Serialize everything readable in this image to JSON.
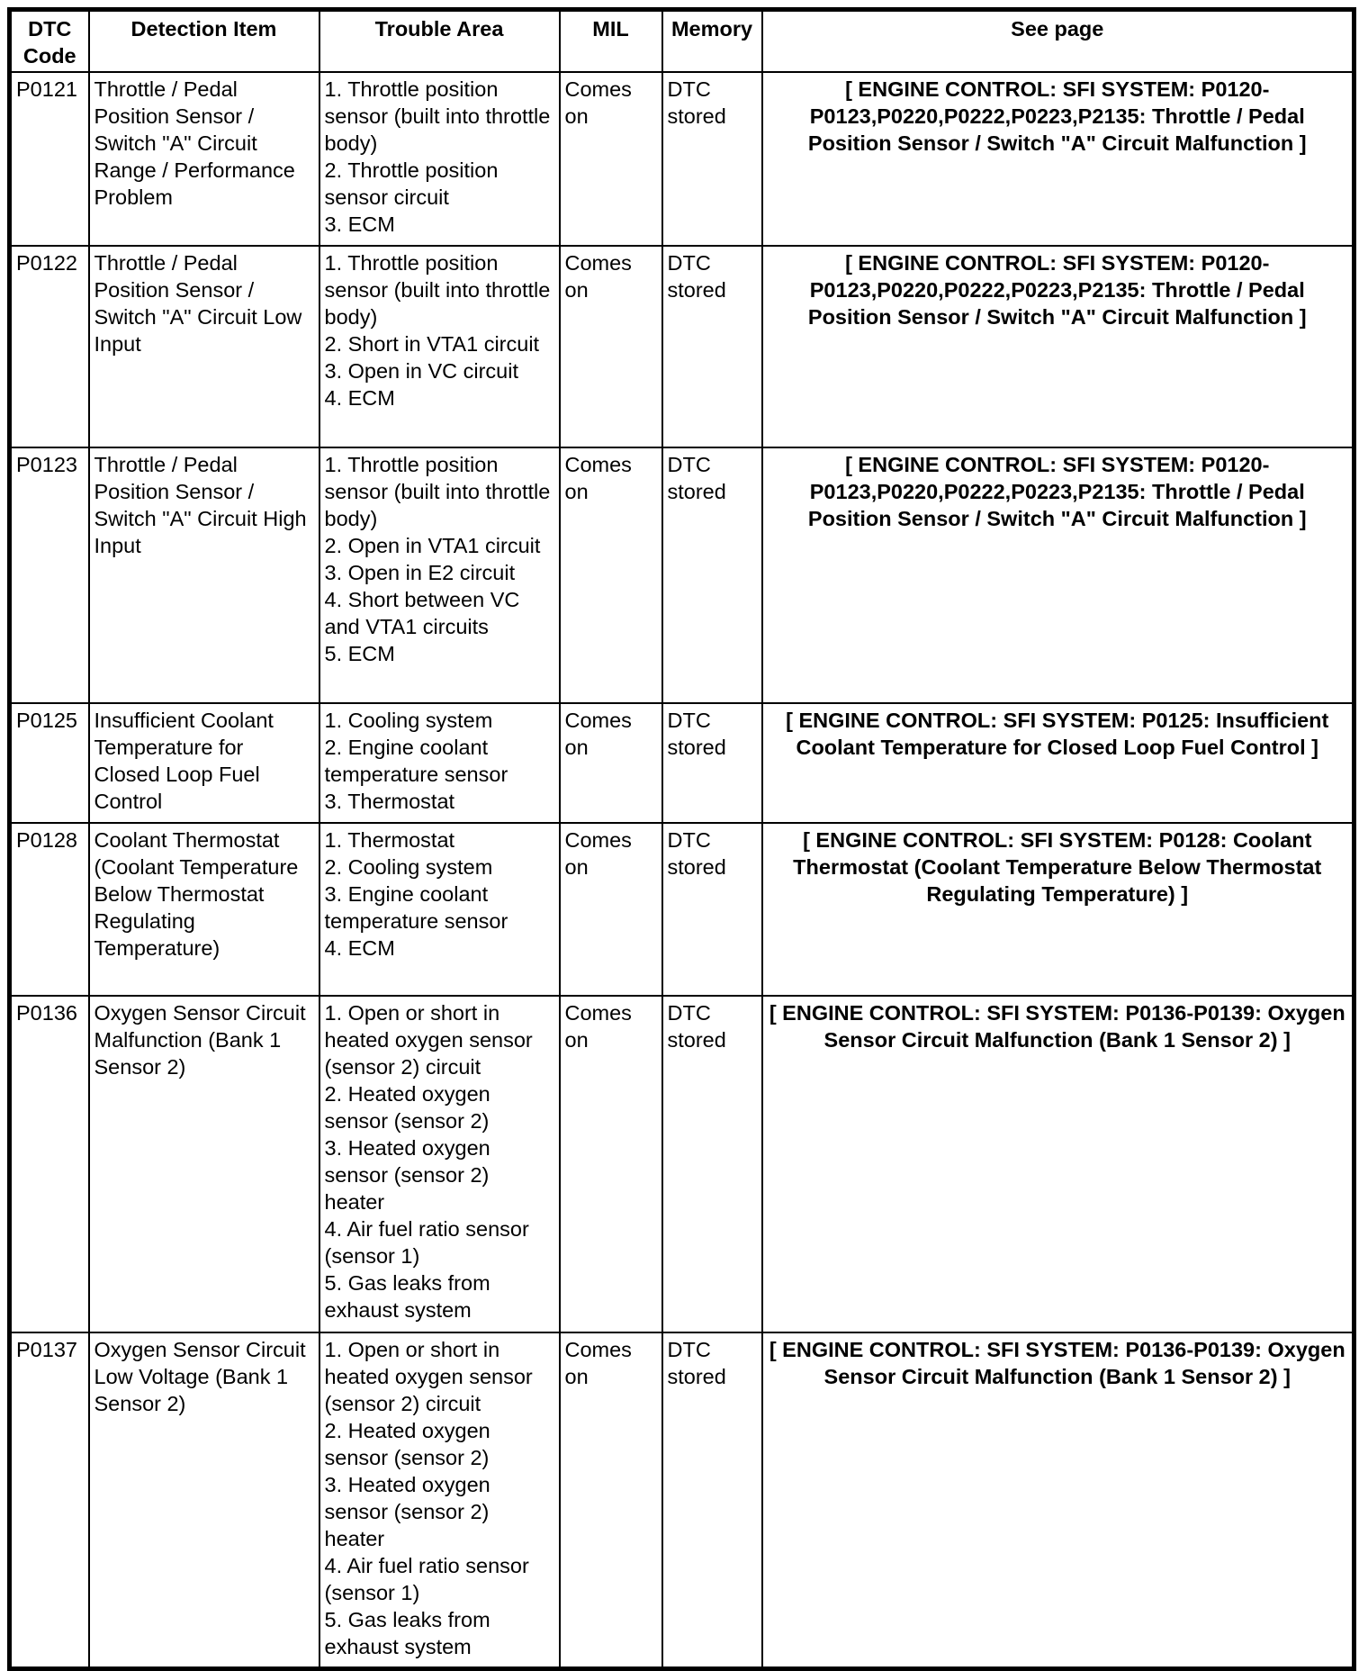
{
  "headers": {
    "code": "DTC Code",
    "detection": "Detection Item",
    "trouble": "Trouble Area",
    "mil": "MIL",
    "memory": "Memory",
    "see": "See page"
  },
  "rows": [
    {
      "code": "P0121",
      "detection": "Throttle / Pedal Position Sensor / Switch \"A\" Circuit Range / Performance Problem",
      "trouble": [
        "1. Throttle position sensor (built into throttle body)",
        "2. Throttle position sensor circuit",
        "3. ECM"
      ],
      "mil": "Comes on",
      "memory": "DTC stored",
      "see": "[ ENGINE CONTROL: SFI SYSTEM: P0120-P0123,P0220,P0222,P0223,P2135: Throttle / Pedal Position Sensor / Switch \"A\" Circuit Malfunction ]"
    },
    {
      "code": "P0122",
      "detection": "Throttle / Pedal Position Sensor / Switch \"A\" Circuit Low Input",
      "trouble": [
        "1. Throttle position sensor (built into throttle body)",
        "2. Short in VTA1 circuit",
        "3. Open in VC circuit",
        "4. ECM"
      ],
      "mil": "Comes on",
      "memory": "DTC stored",
      "see": "[ ENGINE CONTROL: SFI SYSTEM: P0120-P0123,P0220,P0222,P0223,P2135: Throttle / Pedal Position Sensor / Switch \"A\" Circuit Malfunction ]"
    },
    {
      "code": "P0123",
      "detection": "Throttle / Pedal Position Sensor / Switch \"A\" Circuit High Input",
      "trouble": [
        "1. Throttle position sensor (built into throttle body)",
        "2. Open in VTA1 circuit",
        "3. Open in E2 circuit",
        "4. Short between VC and VTA1 circuits",
        "5. ECM"
      ],
      "mil": "Comes on",
      "memory": "DTC stored",
      "see": "[ ENGINE CONTROL: SFI SYSTEM: P0120-P0123,P0220,P0222,P0223,P2135: Throttle / Pedal Position Sensor / Switch \"A\" Circuit Malfunction ]"
    },
    {
      "code": "P0125",
      "detection": "Insufficient Coolant Temperature for Closed Loop Fuel Control",
      "trouble": [
        "1. Cooling system",
        "2. Engine coolant temperature sensor",
        "3. Thermostat"
      ],
      "mil": "Comes on",
      "memory": "DTC stored",
      "see": "[ ENGINE CONTROL: SFI SYSTEM: P0125: Insufficient Coolant Temperature for Closed Loop Fuel Control ]"
    },
    {
      "code": "P0128",
      "detection": "Coolant Thermostat (Coolant Temperature Below Thermostat Regulating Temperature)",
      "trouble": [
        "1. Thermostat",
        "2. Cooling system",
        "3. Engine coolant temperature sensor",
        "4. ECM"
      ],
      "mil": "Comes on",
      "memory": "DTC stored",
      "see": "[ ENGINE CONTROL: SFI SYSTEM: P0128: Coolant Thermostat (Coolant Temperature Below Thermostat Regulating Temperature) ]"
    },
    {
      "code": "P0136",
      "detection": "Oxygen Sensor Circuit Malfunction (Bank 1 Sensor 2)",
      "trouble": [
        "1. Open or short in heated oxygen sensor (sensor 2) circuit",
        "2. Heated oxygen sensor (sensor 2)",
        "3. Heated oxygen sensor (sensor 2) heater",
        "4. Air fuel ratio sensor (sensor 1)",
        "5. Gas leaks from exhaust system"
      ],
      "mil": "Comes on",
      "memory": "DTC stored",
      "see": "[ ENGINE CONTROL: SFI SYSTEM: P0136-P0139: Oxygen Sensor Circuit Malfunction (Bank 1 Sensor 2) ]"
    },
    {
      "code": "P0137",
      "detection": "Oxygen Sensor Circuit Low Voltage (Bank 1 Sensor 2)",
      "trouble": [
        "1. Open or short in heated oxygen sensor (sensor 2) circuit",
        "2. Heated oxygen sensor (sensor 2)",
        "3. Heated oxygen sensor (sensor 2) heater",
        "4. Air fuel ratio sensor (sensor 1)",
        "5. Gas leaks from exhaust system"
      ],
      "mil": "Comes on",
      "memory": "DTC stored",
      "see": "[ ENGINE CONTROL: SFI SYSTEM: P0136-P0139: Oxygen Sensor Circuit Malfunction (Bank 1 Sensor 2) ]"
    }
  ]
}
